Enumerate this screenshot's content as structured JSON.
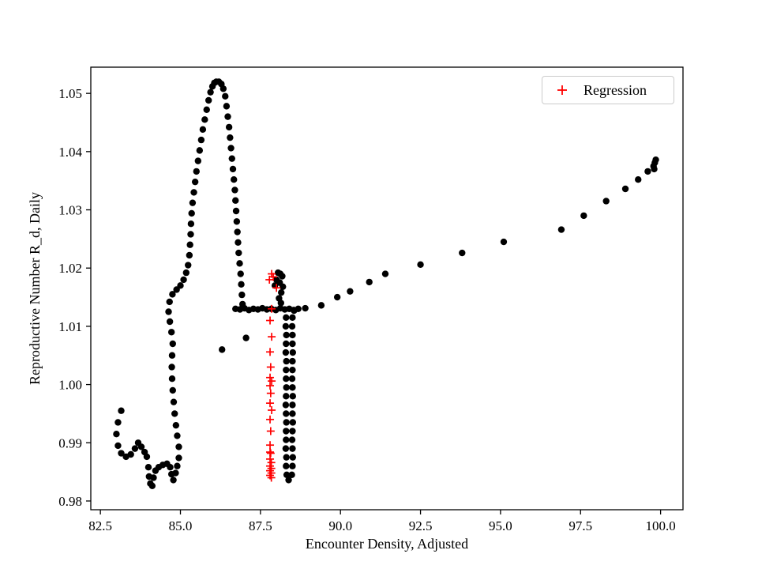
{
  "chart_data": {
    "type": "scatter",
    "title": "",
    "xlabel": "Encounter Density, Adjusted",
    "ylabel": "Reproductive Number R_d, Daily",
    "xlim": [
      82.2,
      100.7
    ],
    "ylim": [
      0.9785,
      1.0545
    ],
    "xticks": [
      82.5,
      85.0,
      87.5,
      90.0,
      92.5,
      95.0,
      97.5,
      100.0
    ],
    "xtick_labels": [
      "82.5",
      "85.0",
      "87.5",
      "90.0",
      "92.5",
      "95.0",
      "97.5",
      "100.0"
    ],
    "yticks": [
      0.98,
      0.99,
      1.0,
      1.01,
      1.02,
      1.03,
      1.04,
      1.05
    ],
    "ytick_labels": [
      "0.98",
      "0.99",
      "1.00",
      "1.01",
      "1.02",
      "1.03",
      "1.04",
      "1.05"
    ],
    "grid": false,
    "legend_position": "upper right",
    "frame_color": "#000000",
    "series": [
      {
        "name": "Data",
        "marker": "circle",
        "color": "#000000",
        "in_legend": false,
        "points": [
          [
            83.15,
            0.9955
          ],
          [
            83.05,
            0.9935
          ],
          [
            83.0,
            0.9915
          ],
          [
            83.05,
            0.9895
          ],
          [
            83.15,
            0.9882
          ],
          [
            83.3,
            0.9876
          ],
          [
            83.45,
            0.988
          ],
          [
            83.58,
            0.989
          ],
          [
            83.68,
            0.99
          ],
          [
            83.78,
            0.9893
          ],
          [
            83.88,
            0.9884
          ],
          [
            83.95,
            0.9876
          ],
          [
            84.0,
            0.9858
          ],
          [
            84.02,
            0.9842
          ],
          [
            84.06,
            0.983
          ],
          [
            84.12,
            0.9826
          ],
          [
            84.16,
            0.984
          ],
          [
            84.22,
            0.9852
          ],
          [
            84.32,
            0.9858
          ],
          [
            84.45,
            0.9862
          ],
          [
            84.58,
            0.9864
          ],
          [
            84.68,
            0.9858
          ],
          [
            84.72,
            0.9846
          ],
          [
            84.78,
            0.9836
          ],
          [
            84.85,
            0.9848
          ],
          [
            84.9,
            0.986
          ],
          [
            84.95,
            0.9874
          ],
          [
            84.95,
            0.9893
          ],
          [
            84.9,
            0.9912
          ],
          [
            84.86,
            0.993
          ],
          [
            84.82,
            0.995
          ],
          [
            84.79,
            0.997
          ],
          [
            84.76,
            0.999
          ],
          [
            84.74,
            1.001
          ],
          [
            84.73,
            1.003
          ],
          [
            84.74,
            1.005
          ],
          [
            84.76,
            1.007
          ],
          [
            84.72,
            1.009
          ],
          [
            84.67,
            1.0108
          ],
          [
            84.63,
            1.0125
          ],
          [
            84.66,
            1.0142
          ],
          [
            84.75,
            1.0155
          ],
          [
            84.88,
            1.0163
          ],
          [
            85.0,
            1.017
          ],
          [
            85.1,
            1.018
          ],
          [
            85.18,
            1.0192
          ],
          [
            85.24,
            1.0205
          ],
          [
            85.28,
            1.0222
          ],
          [
            85.3,
            1.024
          ],
          [
            85.32,
            1.0258
          ],
          [
            85.33,
            1.0276
          ],
          [
            85.35,
            1.0294
          ],
          [
            85.38,
            1.0312
          ],
          [
            85.42,
            1.033
          ],
          [
            85.46,
            1.0348
          ],
          [
            85.5,
            1.0366
          ],
          [
            85.55,
            1.0384
          ],
          [
            85.6,
            1.0402
          ],
          [
            85.65,
            1.042
          ],
          [
            85.7,
            1.0438
          ],
          [
            85.76,
            1.0455
          ],
          [
            85.82,
            1.0472
          ],
          [
            85.88,
            1.0488
          ],
          [
            85.94,
            1.0502
          ],
          [
            86.0,
            1.0512
          ],
          [
            86.06,
            1.0518
          ],
          [
            86.12,
            1.052
          ],
          [
            86.2,
            1.052
          ],
          [
            86.28,
            1.0516
          ],
          [
            86.34,
            1.0508
          ],
          [
            86.4,
            1.0495
          ],
          [
            86.44,
            1.0478
          ],
          [
            86.48,
            1.046
          ],
          [
            86.52,
            1.0442
          ],
          [
            86.55,
            1.0424
          ],
          [
            86.58,
            1.0406
          ],
          [
            86.61,
            1.0388
          ],
          [
            86.64,
            1.037
          ],
          [
            86.67,
            1.0352
          ],
          [
            86.7,
            1.0334
          ],
          [
            86.72,
            1.0316
          ],
          [
            86.74,
            1.0298
          ],
          [
            86.76,
            1.028
          ],
          [
            86.78,
            1.0262
          ],
          [
            86.8,
            1.0244
          ],
          [
            86.82,
            1.0226
          ],
          [
            86.85,
            1.0208
          ],
          [
            86.88,
            1.019
          ],
          [
            86.9,
            1.0172
          ],
          [
            86.92,
            1.0154
          ],
          [
            86.94,
            1.0138
          ],
          [
            86.72,
            1.013
          ],
          [
            86.86,
            1.0129
          ],
          [
            87.0,
            1.0131
          ],
          [
            87.14,
            1.0128
          ],
          [
            87.28,
            1.013
          ],
          [
            87.42,
            1.0129
          ],
          [
            87.56,
            1.0131
          ],
          [
            87.7,
            1.0129
          ],
          [
            87.84,
            1.013
          ],
          [
            87.98,
            1.0128
          ],
          [
            88.12,
            1.0131
          ],
          [
            88.26,
            1.0129
          ],
          [
            88.4,
            1.013
          ],
          [
            88.54,
            1.0128
          ],
          [
            88.68,
            1.013
          ],
          [
            86.3,
            1.006
          ],
          [
            87.05,
            1.008
          ],
          [
            87.95,
            1.017
          ],
          [
            88.0,
            1.018
          ],
          [
            88.05,
            1.0192
          ],
          [
            88.12,
            1.019
          ],
          [
            88.18,
            1.0186
          ],
          [
            88.1,
            1.0175
          ],
          [
            88.2,
            1.0168
          ],
          [
            88.15,
            1.0158
          ],
          [
            88.08,
            1.0148
          ],
          [
            88.14,
            1.014
          ],
          [
            88.3,
            1.0115
          ],
          [
            88.29,
            1.01
          ],
          [
            88.31,
            1.0085
          ],
          [
            88.3,
            1.007
          ],
          [
            88.29,
            1.0055
          ],
          [
            88.31,
            1.004
          ],
          [
            88.3,
            1.0025
          ],
          [
            88.3,
            1.001
          ],
          [
            88.31,
            0.9995
          ],
          [
            88.3,
            0.998
          ],
          [
            88.29,
            0.9965
          ],
          [
            88.3,
            0.995
          ],
          [
            88.31,
            0.9935
          ],
          [
            88.3,
            0.992
          ],
          [
            88.3,
            0.9905
          ],
          [
            88.29,
            0.989
          ],
          [
            88.31,
            0.9875
          ],
          [
            88.3,
            0.986
          ],
          [
            88.32,
            0.9845
          ],
          [
            88.38,
            0.9836
          ],
          [
            88.48,
            0.9845
          ],
          [
            88.5,
            0.986
          ],
          [
            88.51,
            0.9875
          ],
          [
            88.5,
            0.989
          ],
          [
            88.49,
            0.9905
          ],
          [
            88.5,
            0.992
          ],
          [
            88.51,
            0.9935
          ],
          [
            88.5,
            0.995
          ],
          [
            88.5,
            0.9965
          ],
          [
            88.51,
            0.998
          ],
          [
            88.5,
            0.9995
          ],
          [
            88.49,
            1.001
          ],
          [
            88.5,
            1.0025
          ],
          [
            88.5,
            1.004
          ],
          [
            88.51,
            1.0055
          ],
          [
            88.5,
            1.007
          ],
          [
            88.5,
            1.0085
          ],
          [
            88.49,
            1.01
          ],
          [
            88.5,
            1.0115
          ],
          [
            88.55,
            1.0127
          ],
          [
            88.9,
            1.0131
          ],
          [
            89.4,
            1.0136
          ],
          [
            89.9,
            1.015
          ],
          [
            90.3,
            1.016
          ],
          [
            90.9,
            1.0176
          ],
          [
            91.4,
            1.019
          ],
          [
            92.5,
            1.0206
          ],
          [
            93.8,
            1.0226
          ],
          [
            95.1,
            1.0245
          ],
          [
            96.9,
            1.0266
          ],
          [
            97.6,
            1.029
          ],
          [
            98.3,
            1.0315
          ],
          [
            98.9,
            1.0336
          ],
          [
            99.3,
            1.0352
          ],
          [
            99.6,
            1.0366
          ],
          [
            99.78,
            1.0375
          ],
          [
            99.82,
            1.0381
          ],
          [
            99.85,
            1.0386
          ],
          [
            99.8,
            1.037
          ]
        ]
      },
      {
        "name": "Regression",
        "marker": "plus",
        "color": "#ff0000",
        "in_legend": true,
        "points": [
          [
            87.85,
            1.019
          ],
          [
            87.9,
            1.0185
          ],
          [
            87.78,
            1.018
          ],
          [
            88.0,
            1.0166
          ],
          [
            87.85,
            1.013
          ],
          [
            87.8,
            1.011
          ],
          [
            87.85,
            1.0082
          ],
          [
            87.8,
            1.0056
          ],
          [
            87.82,
            1.003
          ],
          [
            87.8,
            1.0012
          ],
          [
            87.85,
            1.0006
          ],
          [
            87.8,
            0.9998
          ],
          [
            87.82,
            0.9985
          ],
          [
            87.8,
            0.9968
          ],
          [
            87.85,
            0.9956
          ],
          [
            87.8,
            0.994
          ],
          [
            87.82,
            0.992
          ],
          [
            87.8,
            0.9896
          ],
          [
            87.82,
            0.9882
          ],
          [
            87.8,
            0.9872
          ],
          [
            87.84,
            0.9866
          ],
          [
            87.8,
            0.986
          ],
          [
            87.84,
            0.9856
          ],
          [
            87.8,
            0.9852
          ],
          [
            87.84,
            0.9848
          ],
          [
            87.8,
            0.9844
          ],
          [
            87.84,
            0.984
          ],
          [
            87.8,
            0.9884
          ]
        ]
      }
    ]
  }
}
